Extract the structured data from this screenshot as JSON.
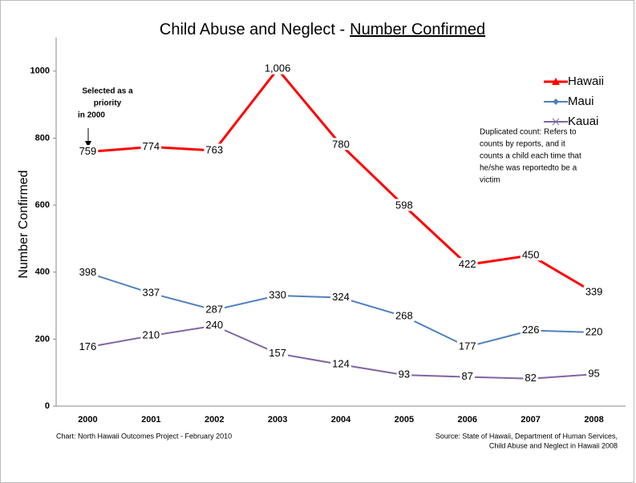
{
  "chart_data": {
    "type": "line",
    "title": [
      "Child Abuse and Neglect -",
      "Number Confirmed"
    ],
    "y_label": "Number Confirmed",
    "categories": [
      "2000",
      "2001",
      "2002",
      "2003",
      "2004",
      "2005",
      "2006",
      "2007",
      "2008"
    ],
    "series": [
      {
        "name": "Hawaii",
        "color": "#ff0000",
        "marker": "triangle",
        "values": [
          759,
          774,
          763,
          1006,
          780,
          598,
          422,
          450,
          339
        ],
        "value_labels": [
          "759",
          "774",
          "763",
          "1,006",
          "780",
          "598",
          "422",
          "450",
          "339"
        ]
      },
      {
        "name": "Maui",
        "color": "#4f81bd",
        "marker": "diamond",
        "values": [
          398,
          337,
          287,
          330,
          324,
          268,
          177,
          226,
          220
        ]
      },
      {
        "name": "Kauai",
        "color": "#8064a2",
        "marker": "x",
        "values": [
          176,
          210,
          240,
          157,
          124,
          93,
          87,
          82,
          95
        ]
      }
    ],
    "ylim": [
      0,
      1100
    ],
    "yticks": [
      0,
      200,
      400,
      600,
      800,
      1000
    ],
    "legend": "upper right",
    "annotations": [
      {
        "lines": [
          "Selected as a",
          "priority",
          "in 2000"
        ]
      },
      {
        "lines": [
          "Duplicated count:  Refers to",
          "counts by reports, and it",
          "counts a child each time that",
          "he/she was reportedto be a",
          "victim"
        ]
      }
    ],
    "footer_left": "Chart:  North Hawaii Outcomes Project - February 2010",
    "footer_right": [
      "Source: State of Hawaii, Department of Human Services,",
      "Child Abuse and Neglect in Hawaii 2008"
    ]
  }
}
